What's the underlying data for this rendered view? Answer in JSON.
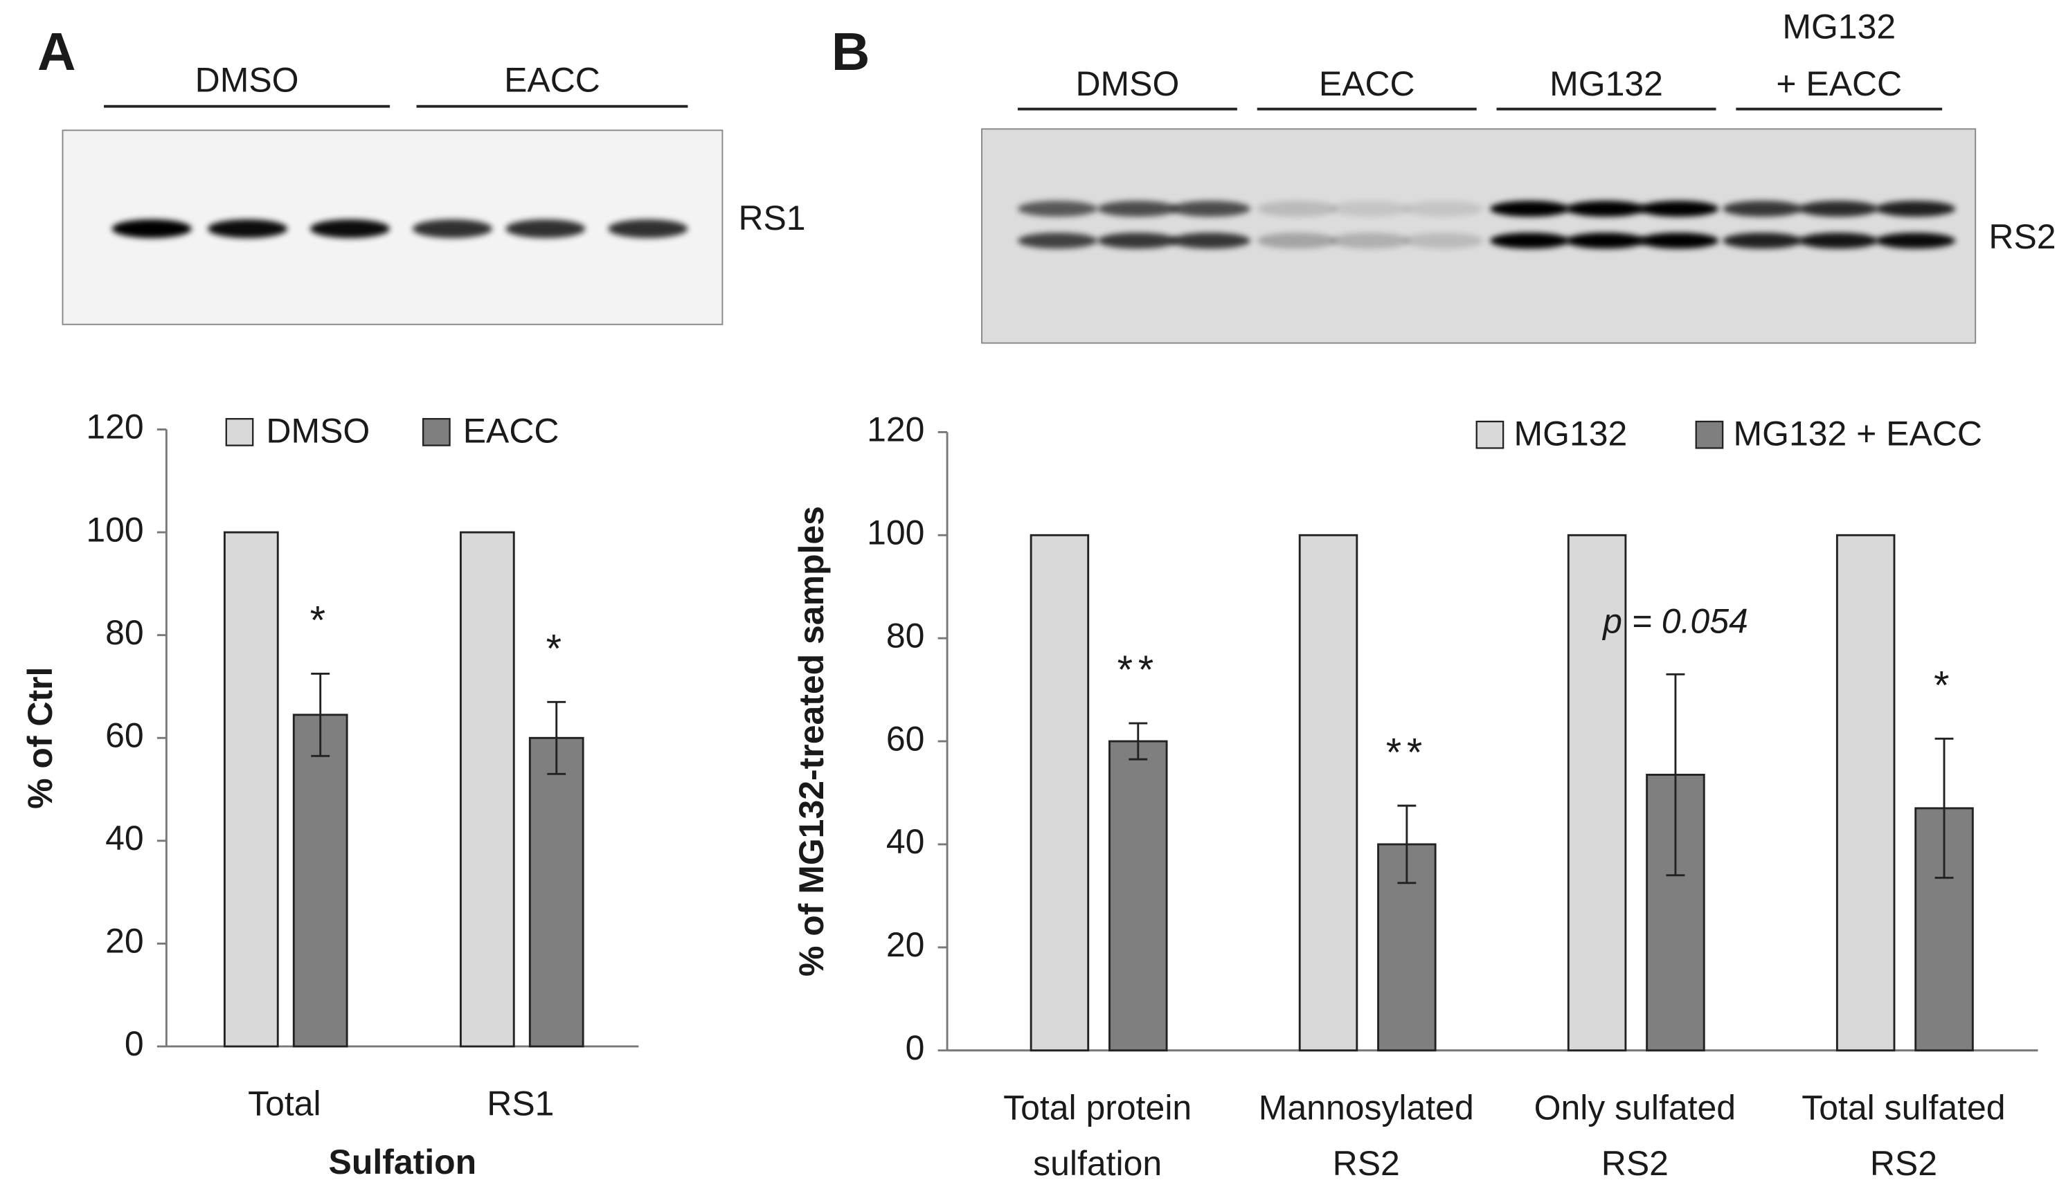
{
  "chart_data": [
    {
      "type": "bar",
      "panel_label": "A",
      "blot_groups": [
        "DMSO",
        "EACC"
      ],
      "blot_label": "RS1",
      "categories": [
        "Total",
        "RS1"
      ],
      "xlabel": "Sulfation",
      "ylabel": "% of Ctrl",
      "series": [
        {
          "name": "DMSO",
          "color": "#d9d9d9",
          "values": [
            100,
            100
          ]
        },
        {
          "name": "EACC",
          "color": "#7f7f7f",
          "values": [
            64.5,
            60
          ],
          "errors": [
            8,
            7
          ]
        }
      ],
      "annotations": [
        "*",
        "*"
      ],
      "ylim": [
        0,
        120
      ],
      "yticks": [
        0,
        20,
        40,
        60,
        80,
        100,
        120
      ]
    },
    {
      "type": "bar",
      "panel_label": "B",
      "blot_groups": [
        [
          "DMSO"
        ],
        [
          "EACC"
        ],
        [
          "MG132"
        ],
        [
          "MG132",
          "+ EACC"
        ]
      ],
      "blot_label": "RS2",
      "categories": [
        [
          "Total protein",
          "sulfation"
        ],
        [
          "Mannosylated",
          "RS2"
        ],
        [
          "Only sulfated",
          "RS2"
        ],
        [
          "Total sulfated",
          "RS2"
        ]
      ],
      "ylabel": "% of MG132-treated samples",
      "series": [
        {
          "name": "MG132",
          "color": "#d9d9d9",
          "values": [
            100,
            100,
            100,
            100
          ]
        },
        {
          "name": "MG132 + EACC",
          "color": "#7f7f7f",
          "values": [
            60,
            40,
            53.5,
            47
          ],
          "errors": [
            3.5,
            7.5,
            19.5,
            13.5
          ]
        }
      ],
      "annotations": [
        "**",
        "**",
        "p = 0.054",
        "*"
      ],
      "ylim": [
        0,
        120
      ],
      "yticks": [
        0,
        20,
        40,
        60,
        80,
        100,
        120
      ]
    }
  ]
}
